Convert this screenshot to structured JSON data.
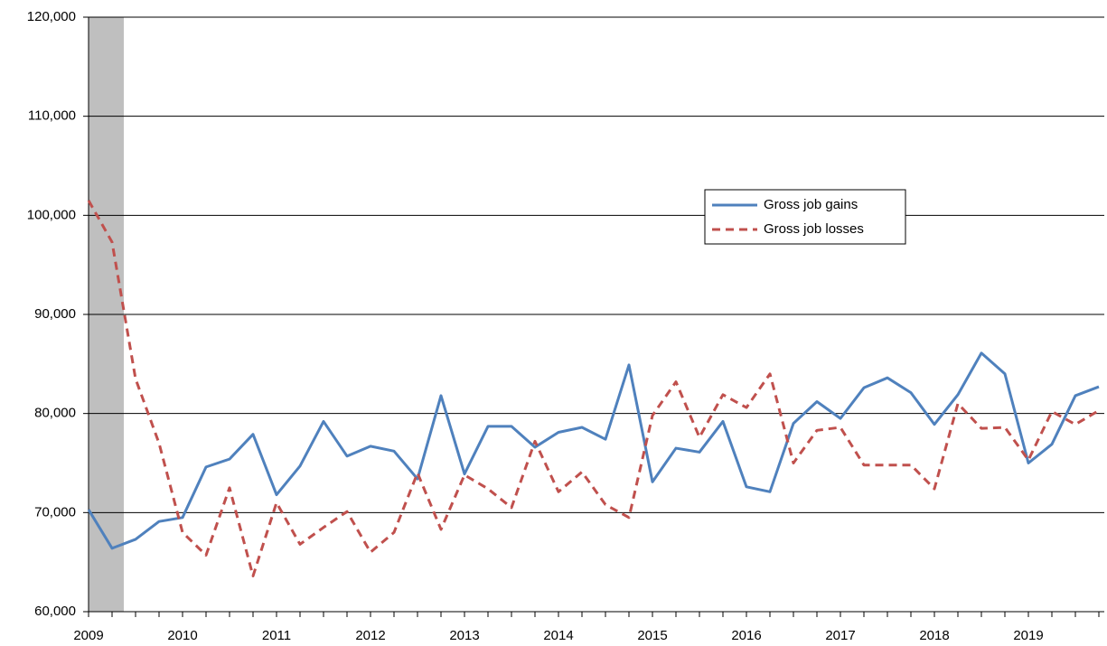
{
  "chart_data": {
    "type": "line",
    "categories": [
      "2009",
      null,
      null,
      null,
      "2010",
      null,
      null,
      null,
      "2011",
      null,
      null,
      null,
      "2012",
      null,
      null,
      null,
      "2013",
      null,
      null,
      null,
      "2014",
      null,
      null,
      null,
      "2015",
      null,
      null,
      null,
      "2016",
      null,
      null,
      null,
      "2017",
      null,
      null,
      null,
      "2018",
      null,
      null,
      null,
      "2019",
      null,
      null,
      null
    ],
    "series": [
      {
        "name": "Gross job gains",
        "color": "#4f81bd",
        "dash": "solid",
        "values": [
          70300,
          66400,
          67300,
          69100,
          69500,
          74600,
          75400,
          77900,
          71800,
          74700,
          79200,
          75700,
          76700,
          76200,
          73400,
          81800,
          73900,
          78700,
          78700,
          76600,
          78100,
          78600,
          77400,
          84900,
          73100,
          76500,
          76100,
          79200,
          72600,
          72100,
          79000,
          81200,
          79500,
          82600,
          83600,
          82100,
          78900,
          81900,
          86100,
          84000,
          75000,
          76900,
          81800,
          82700
        ]
      },
      {
        "name": "Gross job losses",
        "color": "#c0504d",
        "dash": "dashed",
        "values": [
          101500,
          97300,
          83500,
          77000,
          68000,
          65700,
          72500,
          63600,
          71000,
          66800,
          68500,
          70100,
          66000,
          68000,
          74000,
          68300,
          73800,
          72400,
          70500,
          77200,
          72100,
          74100,
          70800,
          69500,
          79800,
          83200,
          77600,
          81900,
          80600,
          84000,
          75000,
          78300,
          78600,
          74800,
          74800,
          74800,
          72400,
          81000,
          78500,
          78600,
          75300,
          80200,
          78900,
          80300
        ]
      }
    ],
    "ylim": [
      60000,
      120000
    ],
    "yticks": [
      {
        "value": 60000,
        "label": "60,000"
      },
      {
        "value": 70000,
        "label": "70,000"
      },
      {
        "value": 80000,
        "label": "80,000"
      },
      {
        "value": 90000,
        "label": "90,000"
      },
      {
        "value": 100000,
        "label": "100,000"
      },
      {
        "value": 110000,
        "label": "110,000"
      },
      {
        "value": 120000,
        "label": "120,000"
      }
    ],
    "grid": true
  }
}
